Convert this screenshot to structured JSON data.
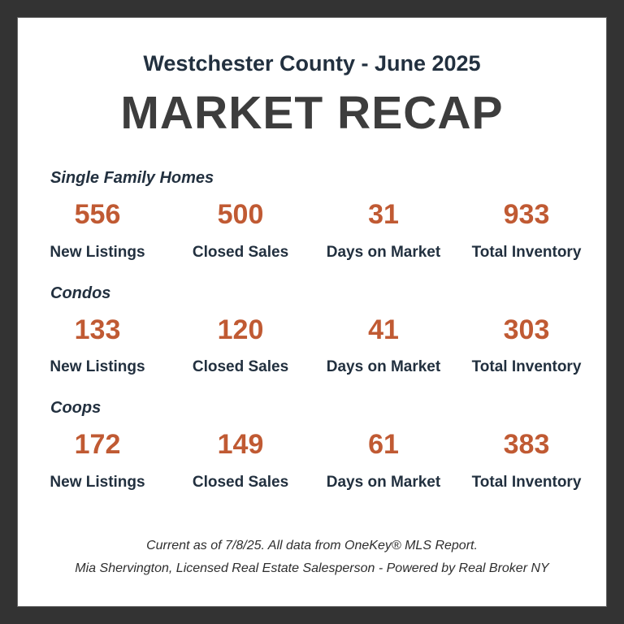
{
  "header": {
    "subtitle": "Westchester County - June 2025",
    "title": "MARKET RECAP"
  },
  "sections": [
    {
      "name": "Single Family Homes",
      "stats": [
        {
          "value": "556",
          "label": "New Listings"
        },
        {
          "value": "500",
          "label": "Closed Sales"
        },
        {
          "value": "31",
          "label": "Days on Market"
        },
        {
          "value": "933",
          "label": "Total Inventory"
        }
      ]
    },
    {
      "name": "Condos",
      "stats": [
        {
          "value": "133",
          "label": "New Listings"
        },
        {
          "value": "120",
          "label": "Closed Sales"
        },
        {
          "value": "41",
          "label": "Days on Market"
        },
        {
          "value": "303",
          "label": "Total Inventory"
        }
      ]
    },
    {
      "name": "Coops",
      "stats": [
        {
          "value": "172",
          "label": "New Listings"
        },
        {
          "value": "149",
          "label": "Closed Sales"
        },
        {
          "value": "61",
          "label": "Days on Market"
        },
        {
          "value": "383",
          "label": "Total Inventory"
        }
      ]
    }
  ],
  "footer": {
    "line1": "Current as of 7/8/25. All data from OneKey® MLS Report.",
    "line2": "Mia Shervington, Licensed Real Estate Salesperson - Powered by Real Broker NY"
  },
  "colors": {
    "frame": "#333333",
    "panel": "#ffffff",
    "navy": "#22303f",
    "heading_gray": "#3d3d3d",
    "accent_orange": "#c05a33",
    "footer_gray": "#2e2e2e"
  }
}
